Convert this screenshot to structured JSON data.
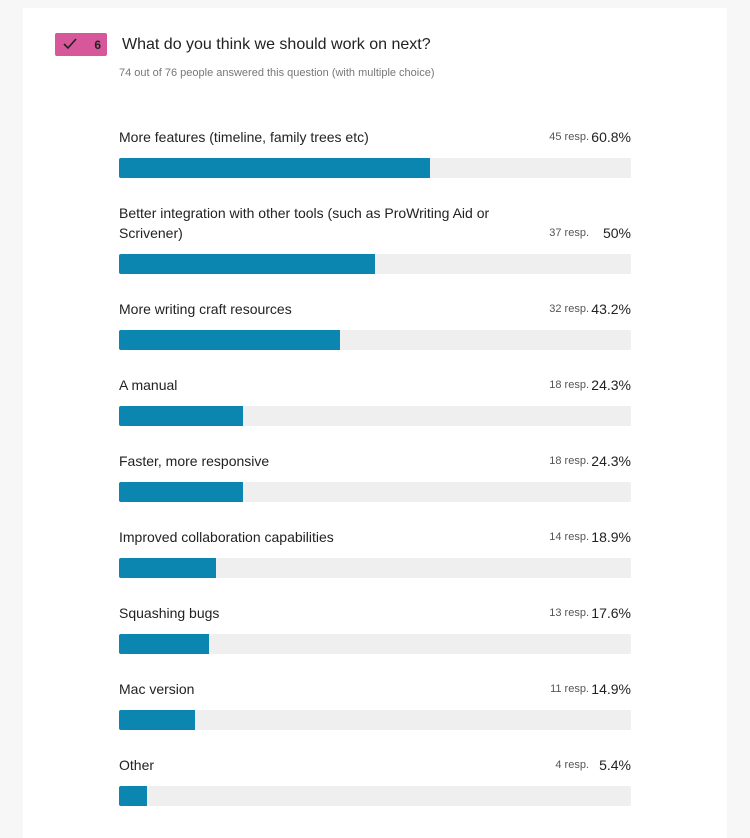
{
  "question": {
    "number": 6,
    "title": "What do you think we should work on next?",
    "summary": "74 out of 76 people answered this question (with multiple choice)"
  },
  "chart_data": {
    "type": "bar",
    "orientation": "horizontal",
    "color": "#0b86b1",
    "track_color": "#efefef",
    "xlim": [
      0,
      100
    ],
    "categories": [
      "More features (timeline, family trees etc)",
      "Better integration with other tools (such as ProWriting Aid or Scrivener)",
      "More writing craft resources",
      "A manual",
      "Faster, more responsive",
      "Improved collaboration capabilities",
      "Squashing bugs",
      "Mac version",
      "Other"
    ],
    "responses": [
      "45 resp.",
      "37 resp.",
      "32 resp.",
      "18 resp.",
      "18 resp.",
      "14 resp.",
      "13 resp.",
      "11 resp.",
      "4 resp."
    ],
    "values": [
      60.8,
      50,
      43.2,
      24.3,
      24.3,
      18.9,
      17.6,
      14.9,
      5.4
    ],
    "value_labels": [
      "60.8%",
      "50%",
      "43.2%",
      "24.3%",
      "24.3%",
      "18.9%",
      "17.6%",
      "14.9%",
      "5.4%"
    ]
  }
}
